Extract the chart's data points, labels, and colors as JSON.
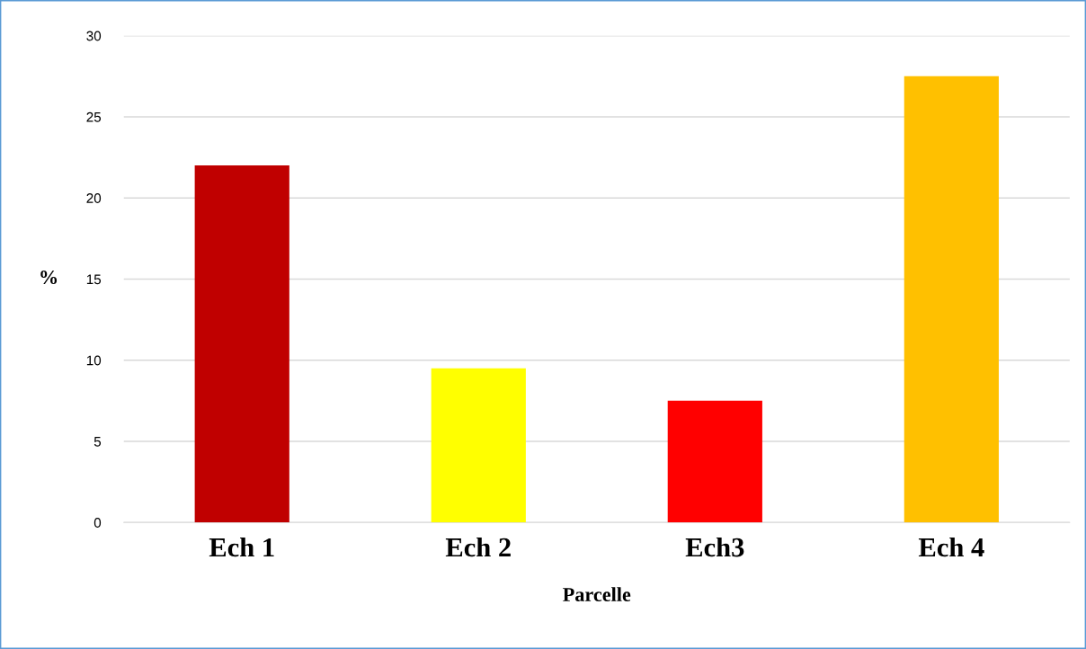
{
  "chart_data": {
    "type": "bar",
    "xlabel": "Parcelle",
    "ylabel": "%",
    "categories": [
      "Ech 1",
      "Ech 2",
      "Ech3",
      "Ech 4"
    ],
    "values": [
      22,
      9.5,
      7.5,
      27.5
    ],
    "colors": [
      "#c00000",
      "#ffff00",
      "#ff0000",
      "#ffc000"
    ],
    "ylim": [
      0,
      30
    ],
    "yticks": [
      0,
      5,
      10,
      15,
      20,
      25,
      30
    ],
    "grid": "y",
    "legend": false
  }
}
